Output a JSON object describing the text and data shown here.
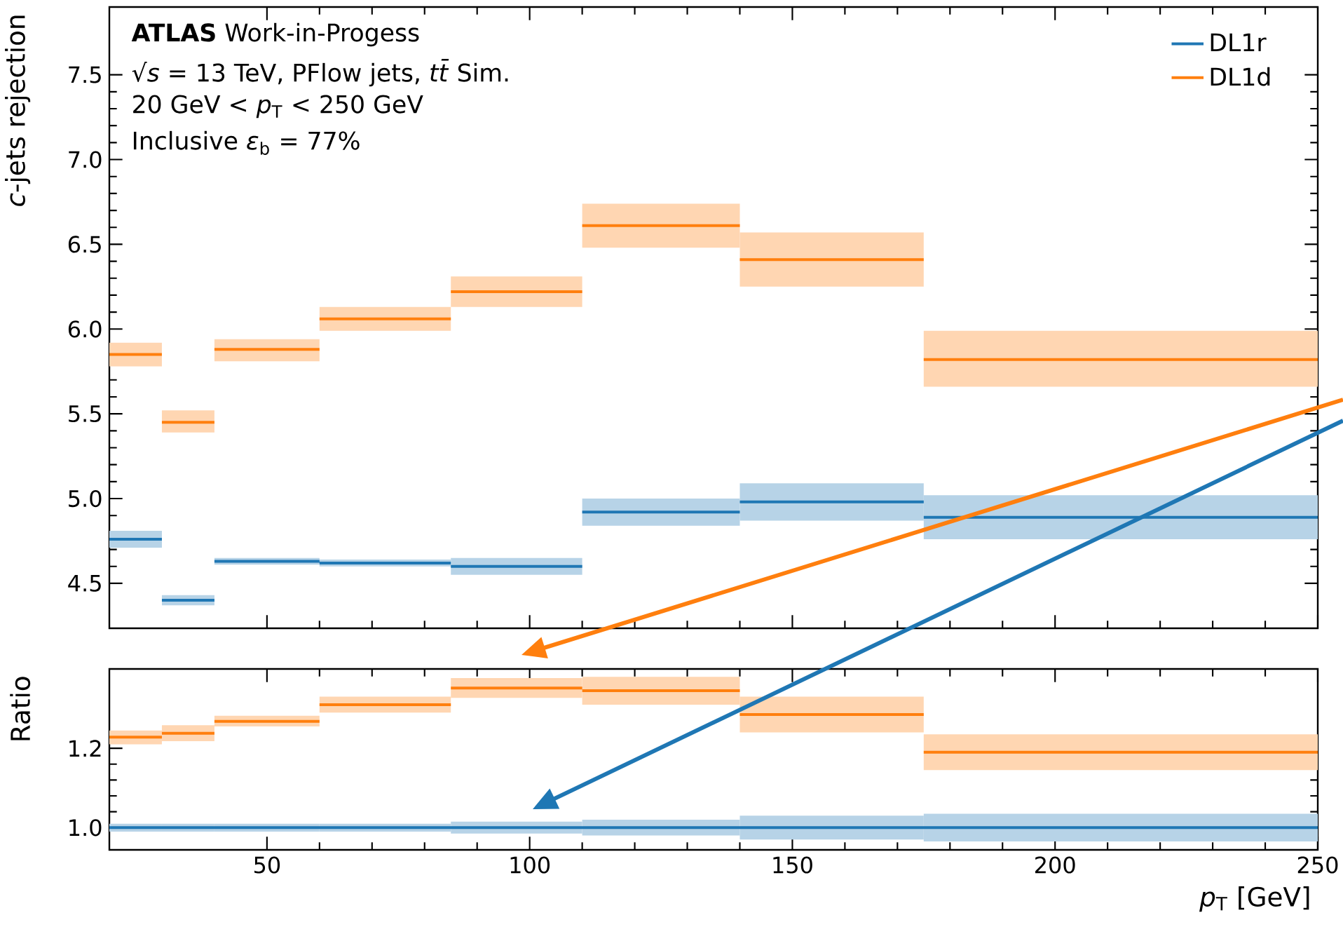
{
  "chart_data": [
    {
      "type": "line",
      "ylabel": "*c*-jets rejection",
      "series": [
        {
          "name": "DL1r",
          "color": "#1f77b4",
          "x": [
            20,
            30,
            null,
            30,
            40,
            null,
            40,
            60,
            null,
            60,
            85,
            null,
            85,
            110,
            null,
            110,
            140,
            null,
            140,
            175,
            null,
            175,
            250
          ],
          "values": [
            4.76,
            4.76,
            null,
            4.4,
            4.4,
            null,
            4.63,
            4.63,
            null,
            4.62,
            4.62,
            null,
            4.6,
            4.6,
            null,
            4.92,
            4.92,
            null,
            4.98,
            4.98,
            null,
            4.89,
            4.89
          ],
          "lower": [
            4.71,
            4.71,
            null,
            4.37,
            4.37,
            null,
            4.61,
            4.61,
            null,
            4.6,
            4.6,
            null,
            4.55,
            4.55,
            null,
            4.84,
            4.84,
            null,
            4.87,
            4.87,
            null,
            4.76,
            4.76
          ],
          "upper": [
            4.81,
            4.81,
            null,
            4.43,
            4.43,
            null,
            4.65,
            4.65,
            null,
            4.64,
            4.64,
            null,
            4.65,
            4.65,
            null,
            5.0,
            5.0,
            null,
            5.09,
            5.09,
            null,
            5.02,
            5.02
          ]
        },
        {
          "name": "DL1d",
          "color": "#ff7f0e",
          "x": [
            20,
            30,
            null,
            30,
            40,
            null,
            40,
            60,
            null,
            60,
            85,
            null,
            85,
            110,
            null,
            110,
            140,
            null,
            140,
            175,
            null,
            175,
            250
          ],
          "values": [
            5.85,
            5.85,
            null,
            5.45,
            5.45,
            null,
            5.88,
            5.88,
            null,
            6.06,
            6.06,
            null,
            6.22,
            6.22,
            null,
            6.61,
            6.61,
            null,
            6.41,
            6.41,
            null,
            5.82,
            5.82
          ],
          "lower": [
            5.78,
            5.78,
            null,
            5.39,
            5.39,
            null,
            5.81,
            5.81,
            null,
            5.99,
            5.99,
            null,
            6.13,
            6.13,
            null,
            6.48,
            6.48,
            null,
            6.25,
            6.25,
            null,
            5.66,
            5.66
          ],
          "upper": [
            5.92,
            5.92,
            null,
            5.52,
            5.52,
            null,
            5.94,
            5.94,
            null,
            6.13,
            6.13,
            null,
            6.31,
            6.31,
            null,
            6.74,
            6.74,
            null,
            6.57,
            6.57,
            null,
            5.99,
            5.99
          ]
        }
      ],
      "xlim": [
        20,
        250
      ],
      "xticks": [
        50,
        100,
        150,
        200,
        250
      ],
      "ylim": [
        4.235,
        7.9
      ],
      "yticks": [
        {
          "value": 4.5,
          "label": "4.5"
        },
        {
          "value": 5,
          "label": "5.0"
        },
        {
          "value": 5.5,
          "label": "5.5"
        },
        {
          "value": 6,
          "label": "6.0"
        },
        {
          "value": 6.5,
          "label": "6.5"
        },
        {
          "value": 7,
          "label": "7.0"
        },
        {
          "value": 7.5,
          "label": "7.5"
        }
      ],
      "tick_labels": "y",
      "legend": "top right",
      "annotations": [
        "**ATLAS** Work-in-Progess",
        "√*s* = 13 TeV, PFlow jets, *tt̄* Sim.",
        "20 GeV < *p*$_{T}$ < 250 GeV",
        "Inclusive *ε*$_{b}$ = 77%"
      ]
    },
    {
      "type": "line",
      "ylabel": "Ratio",
      "xlabel": "*p*$_{T}$ [GeV]",
      "series": [
        {
          "color": "#1f77b4",
          "x": [
            20,
            30,
            null,
            30,
            40,
            null,
            40,
            60,
            null,
            60,
            85,
            null,
            85,
            110,
            null,
            110,
            140,
            null,
            140,
            175,
            null,
            175,
            250
          ],
          "values": [
            1.0,
            1.0,
            null,
            1.0,
            1.0,
            null,
            1.0,
            1.0,
            null,
            1.0,
            1.0,
            null,
            1.0,
            1.0,
            null,
            1.0,
            1.0,
            null,
            1.0,
            1.0,
            null,
            1.0,
            1.0
          ],
          "lower": [
            0.99,
            0.99,
            null,
            0.99,
            0.99,
            null,
            0.99,
            0.99,
            null,
            0.99,
            0.99,
            null,
            0.985,
            0.985,
            null,
            0.98,
            0.98,
            null,
            0.97,
            0.97,
            null,
            0.965,
            0.965
          ],
          "upper": [
            1.01,
            1.01,
            null,
            1.01,
            1.01,
            null,
            1.01,
            1.01,
            null,
            1.01,
            1.01,
            null,
            1.015,
            1.015,
            null,
            1.02,
            1.02,
            null,
            1.03,
            1.03,
            null,
            1.035,
            1.035
          ]
        },
        {
          "color": "#ff7f0e",
          "x": [
            20,
            30,
            null,
            30,
            40,
            null,
            40,
            60,
            null,
            60,
            85,
            null,
            85,
            110,
            null,
            110,
            140,
            null,
            140,
            175,
            null,
            175,
            250
          ],
          "values": [
            1.228,
            1.228,
            null,
            1.238,
            1.238,
            null,
            1.268,
            1.268,
            null,
            1.31,
            1.31,
            null,
            1.352,
            1.352,
            null,
            1.345,
            1.345,
            null,
            1.285,
            1.285,
            null,
            1.19,
            1.19
          ],
          "lower": [
            1.21,
            1.21,
            null,
            1.218,
            1.218,
            null,
            1.255,
            1.255,
            null,
            1.29,
            1.29,
            null,
            1.327,
            1.327,
            null,
            1.31,
            1.31,
            null,
            1.24,
            1.24,
            null,
            1.145,
            1.145
          ],
          "upper": [
            1.245,
            1.245,
            null,
            1.258,
            1.258,
            null,
            1.282,
            1.282,
            null,
            1.33,
            1.33,
            null,
            1.377,
            1.377,
            null,
            1.38,
            1.38,
            null,
            1.33,
            1.33,
            null,
            1.235,
            1.235
          ]
        }
      ],
      "xlim": [
        20,
        250
      ],
      "xticks": [
        50,
        100,
        150,
        200,
        250
      ],
      "ylim": [
        0.944,
        1.4
      ],
      "yticks": [
        {
          "value": 1,
          "label": "1.0"
        },
        {
          "value": 1.2,
          "label": "1.2"
        }
      ]
    }
  ]
}
